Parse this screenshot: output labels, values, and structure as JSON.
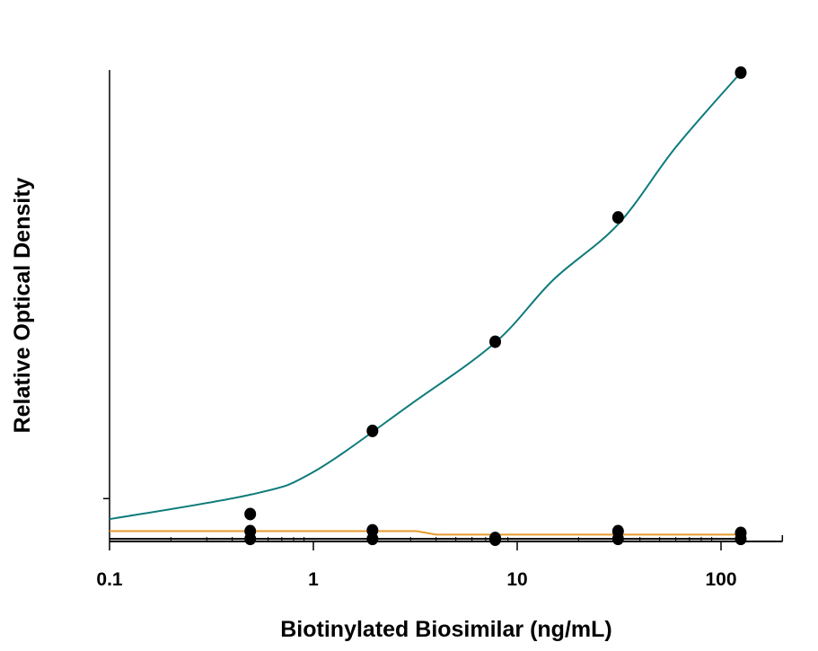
{
  "chart_data": {
    "type": "scatter",
    "title": "",
    "xlabel": "Biotinylated Biosimilar (ng/mL)",
    "ylabel": "Relative Optical Density",
    "xscale": "log",
    "xlim": [
      0.1,
      200
    ],
    "ylim": [
      0,
      5.5
    ],
    "x_ticks": [
      0.1,
      1,
      10,
      100
    ],
    "x_tick_labels": [
      "0.1",
      "1",
      "10",
      "100"
    ],
    "y_ticks": [
      0.5
    ],
    "y_tick_labels": [],
    "grid": false,
    "legend": "none",
    "series": [
      {
        "color": "#0e7b7b",
        "marker_color": "#000000",
        "points": [
          [
            0.49,
            0.32
          ],
          [
            1.95,
            1.29
          ],
          [
            7.8,
            2.33
          ],
          [
            31.25,
            3.78
          ],
          [
            125,
            5.47
          ]
        ],
        "fit_curve": [
          [
            0.1,
            0.26
          ],
          [
            0.5,
            0.55
          ],
          [
            1,
            0.81
          ],
          [
            3,
            1.6
          ],
          [
            7.8,
            2.32
          ],
          [
            15,
            3.05
          ],
          [
            31.25,
            3.7
          ],
          [
            60,
            4.6
          ],
          [
            125,
            5.47
          ]
        ]
      },
      {
        "color": "#e69a2e",
        "marker_color": "#000000",
        "points": [
          [
            0.49,
            0.12
          ],
          [
            1.95,
            0.13
          ],
          [
            7.8,
            0.04
          ],
          [
            31.25,
            0.12
          ],
          [
            125,
            0.1
          ]
        ],
        "fit_curve": [
          [
            0.1,
            0.12
          ],
          [
            3.2,
            0.12
          ],
          [
            4,
            0.08
          ],
          [
            125,
            0.08
          ]
        ]
      },
      {
        "color": "#000000",
        "marker_color": "#000000",
        "points": [
          [
            0.49,
            0.03
          ],
          [
            1.95,
            0.03
          ],
          [
            7.8,
            0.02
          ],
          [
            31.25,
            0.03
          ],
          [
            125,
            0.03
          ]
        ],
        "fit_curve": [
          [
            0.1,
            0.03
          ],
          [
            125,
            0.03
          ]
        ]
      }
    ]
  }
}
